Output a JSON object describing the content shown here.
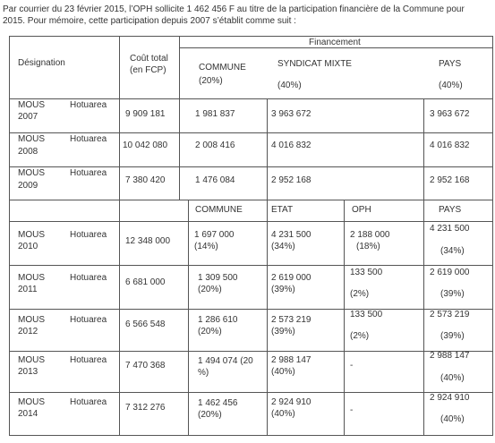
{
  "intro": {
    "line1": "Par courrier du 23 février 2015, l’OPH sollicite 1 462 456 F au titre de la participation financière de la Commune pour",
    "line2": "2015. Pour mémoire, cette participation depuis 2007 s’établit comme suit :"
  },
  "header": {
    "designation": "Désignation",
    "cout_line1": "Coût total",
    "cout_line2": "(en FCP)",
    "financement": "Financement",
    "commune": "COMMUNE",
    "commune_pct": "(20%)",
    "syndicat": "SYNDICAT MIXTE",
    "syndicat_pct": "(40%)",
    "pays": "PAYS",
    "pays_pct": "(40%)"
  },
  "rows1": [
    {
      "name": "MOUS",
      "place": "Hotuarea",
      "year": "2007",
      "cout": "9 909 181",
      "commune": "1 981 837",
      "syndicat": "3 963 672",
      "pays": "3 963 672"
    },
    {
      "name": "MOUS",
      "place": "Hotuarea",
      "year": "2008",
      "cout": "10 042 080",
      "commune": "2 008 416",
      "syndicat": "4 016 832",
      "pays": "4 016 832"
    },
    {
      "name": "MOUS",
      "place": "Hotuarea",
      "year": "2009",
      "cout": "7 380 420",
      "commune": "1 476 084",
      "syndicat": "2 952 168",
      "pays": "2 952 168"
    }
  ],
  "header2": {
    "commune": "COMMUNE",
    "etat": "ETAT",
    "oph": "OPH",
    "pays": "PAYS"
  },
  "rows2": [
    {
      "name": "MOUS",
      "place": "Hotuarea",
      "year": "2010",
      "cout": "12 348 000",
      "commune": "1 697 000",
      "commune_pct": "(14%)",
      "etat": "4 231 500",
      "etat_pct": "(34%)",
      "oph": "2 188 000",
      "oph_pct": "(18%)",
      "pays": "4 231 500",
      "pays_pct": "(34%)"
    },
    {
      "name": "MOUS",
      "place": "Hotuarea",
      "year": "2011",
      "cout": "6 681 000",
      "commune": "1 309 500",
      "commune_pct": "(20%)",
      "etat": "2 619 000",
      "etat_pct": "(39%)",
      "oph": "133 500",
      "oph_pct": "(2%)",
      "pays": "2 619 000",
      "pays_pct": "(39%)"
    },
    {
      "name": "MOUS",
      "place": "Hotuarea",
      "year": "2012",
      "cout": "6 566 548",
      "commune": "1 286 610",
      "commune_pct": "(20%)",
      "etat": "2 573 219",
      "etat_pct": "(39%)",
      "oph": "133 500",
      "oph_pct": "(2%)",
      "pays": "2 573 219",
      "pays_pct": "(39%)"
    },
    {
      "name": "MOUS",
      "place": "Hotuarea",
      "year": "2013",
      "cout": "7 470 368",
      "commune": "1 494 074 (20 %)",
      "commune_pct": "",
      "etat": "2 988 147",
      "etat_pct": "(40%)",
      "oph": "-",
      "oph_pct": "",
      "pays": "2 988 147",
      "pays_pct": "(40%)"
    },
    {
      "name": "MOUS",
      "place": "Hotuarea",
      "year": "2014",
      "cout": "7 312 276",
      "commune": "1 462 456 (20%)",
      "commune_pct": "",
      "etat": "2 924 910",
      "etat_pct": "(40%)",
      "oph": "-",
      "oph_pct": "",
      "pays": "2 924 910",
      "pays_pct": "(40%)"
    }
  ]
}
